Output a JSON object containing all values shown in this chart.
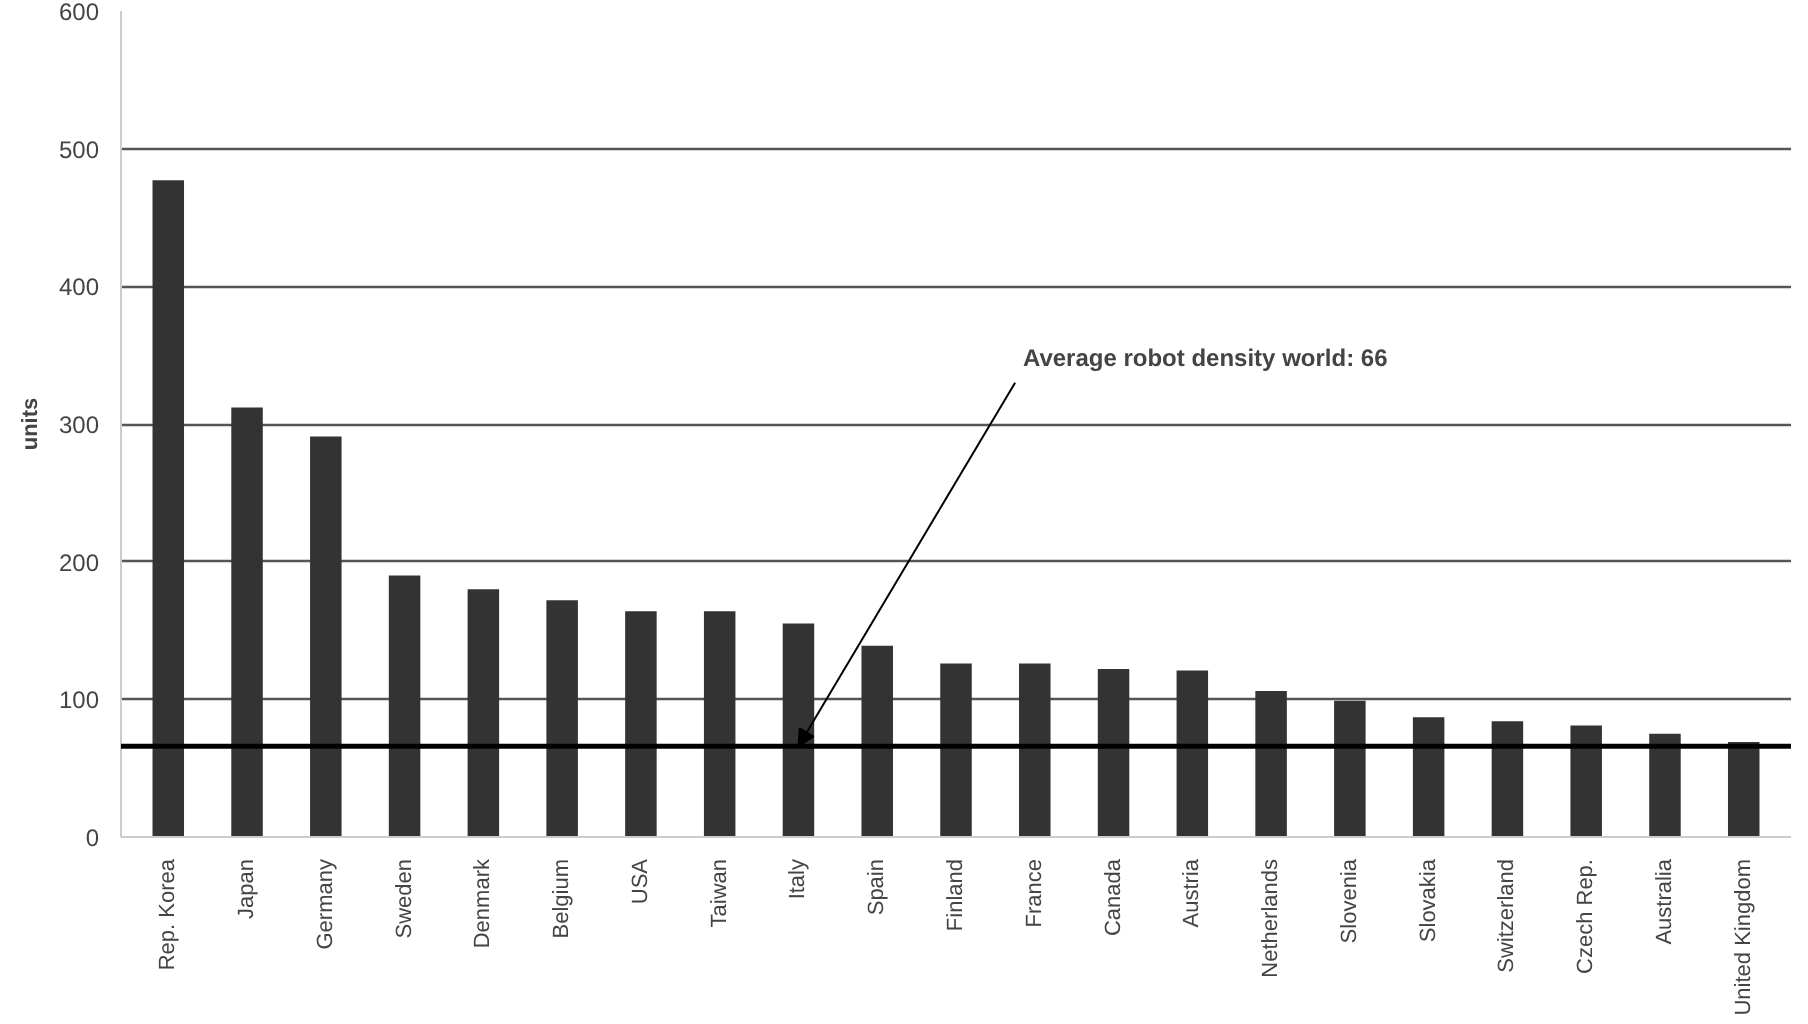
{
  "chart_data": {
    "type": "bar",
    "ylabel": "units",
    "categories": [
      "Rep. Korea",
      "Japan",
      "Germany",
      "Sweden",
      "Denmark",
      "Belgium",
      "USA",
      "Taiwan",
      "Italy",
      "Spain",
      "Finland",
      "France",
      "Canada",
      "Austria",
      "Netherlands",
      "Slovenia",
      "Slovakia",
      "Switzerland",
      "Czech Rep.",
      "Australia",
      "United Kingdom"
    ],
    "values": [
      477,
      312,
      291,
      190,
      180,
      172,
      164,
      164,
      155,
      139,
      126,
      126,
      122,
      121,
      106,
      99,
      87,
      84,
      81,
      75,
      69
    ],
    "color": "#333333",
    "ylim": [
      0,
      600
    ],
    "yticks": [
      0,
      100,
      200,
      300,
      400,
      500,
      600
    ],
    "grid": "y",
    "ref_lines": [
      {
        "axis": "y",
        "value": 66,
        "color": "#000000"
      }
    ],
    "annotations": [
      {
        "text": "Average robot density world: 66",
        "x": "Italy",
        "y": 66
      }
    ]
  }
}
